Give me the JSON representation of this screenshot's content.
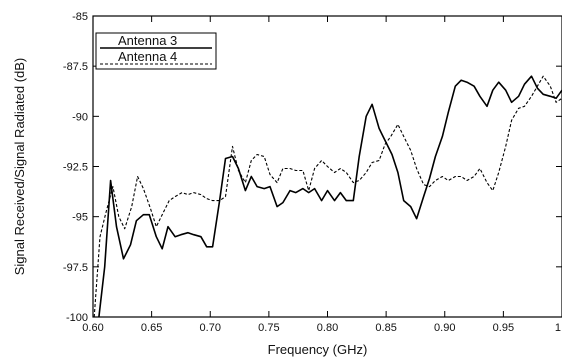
{
  "chart_data": {
    "type": "line",
    "title": "",
    "xlabel": "Frequency (GHz)",
    "ylabel": "Signal Received/Signal Radiated (dB)",
    "xlim": [
      0.6,
      1.0
    ],
    "ylim": [
      -100,
      -85
    ],
    "xticks": [
      0.6,
      0.65,
      0.7,
      0.75,
      0.8,
      0.85,
      0.9,
      0.95,
      1.0
    ],
    "xtick_labels": [
      "0.60",
      "0.65",
      "0.70",
      "0.75",
      "0.80",
      "0.85",
      "0.90",
      "0.95",
      "1"
    ],
    "yticks": [
      -100,
      -97.5,
      -95,
      -92.5,
      -90,
      -87.5,
      -85
    ],
    "ytick_labels": [
      "-100",
      "-97.5",
      "-95",
      "-92.5",
      "-90",
      "-87.5",
      "-85"
    ],
    "grid": false,
    "legend_position": "top-left",
    "series": [
      {
        "name": "Antenna 3",
        "style": "solid",
        "color": "#000000",
        "x": [
          0.605,
          0.61,
          0.615,
          0.62,
          0.626,
          0.632,
          0.637,
          0.643,
          0.648,
          0.654,
          0.659,
          0.664,
          0.67,
          0.675,
          0.681,
          0.686,
          0.692,
          0.697,
          0.702,
          0.708,
          0.713,
          0.719,
          0.724,
          0.73,
          0.735,
          0.74,
          0.746,
          0.751,
          0.757,
          0.762,
          0.768,
          0.773,
          0.779,
          0.784,
          0.789,
          0.795,
          0.8,
          0.806,
          0.811,
          0.816,
          0.822,
          0.827,
          0.833,
          0.838,
          0.844,
          0.849,
          0.855,
          0.86,
          0.865,
          0.871,
          0.876,
          0.882,
          0.887,
          0.892,
          0.898,
          0.903,
          0.909,
          0.914,
          0.919,
          0.925,
          0.93,
          0.936,
          0.941,
          0.946,
          0.952,
          0.957,
          0.963,
          0.968,
          0.974,
          0.979,
          0.984,
          0.99,
          0.995,
          1.0
        ],
        "y": [
          -100,
          -97.5,
          -93.2,
          -95.5,
          -97.1,
          -96.4,
          -95.2,
          -94.9,
          -94.9,
          -96.0,
          -96.6,
          -95.5,
          -96.0,
          -95.9,
          -95.8,
          -95.9,
          -96.0,
          -96.5,
          -96.5,
          -94.2,
          -92.1,
          -92.0,
          -92.6,
          -93.7,
          -93.0,
          -93.5,
          -93.6,
          -93.5,
          -94.5,
          -94.3,
          -93.7,
          -93.8,
          -93.6,
          -93.8,
          -93.6,
          -94.2,
          -93.7,
          -94.2,
          -93.8,
          -94.2,
          -94.2,
          -92.0,
          -90.0,
          -89.4,
          -90.6,
          -91.2,
          -91.9,
          -92.8,
          -94.2,
          -94.5,
          -95.1,
          -94.0,
          -93.1,
          -92.0,
          -91.0,
          -89.8,
          -88.5,
          -88.2,
          -88.3,
          -88.5,
          -89.0,
          -89.5,
          -88.7,
          -88.3,
          -88.7,
          -89.3,
          -89.0,
          -88.4,
          -88.0,
          -88.6,
          -88.9,
          -89.0,
          -89.1,
          -88.7
        ]
      },
      {
        "name": "Antenna 4",
        "style": "dashed",
        "color": "#000000",
        "x": [
          0.601,
          0.606,
          0.611,
          0.617,
          0.622,
          0.627,
          0.633,
          0.638,
          0.643,
          0.649,
          0.654,
          0.659,
          0.665,
          0.67,
          0.676,
          0.681,
          0.686,
          0.692,
          0.697,
          0.702,
          0.708,
          0.713,
          0.719,
          0.724,
          0.73,
          0.735,
          0.74,
          0.746,
          0.751,
          0.757,
          0.762,
          0.768,
          0.773,
          0.779,
          0.784,
          0.789,
          0.795,
          0.8,
          0.806,
          0.811,
          0.816,
          0.822,
          0.827,
          0.833,
          0.838,
          0.844,
          0.849,
          0.854,
          0.86,
          0.865,
          0.871,
          0.876,
          0.882,
          0.887,
          0.892,
          0.898,
          0.903,
          0.909,
          0.914,
          0.919,
          0.925,
          0.93,
          0.936,
          0.941,
          0.946,
          0.952,
          0.957,
          0.963,
          0.968,
          0.974,
          0.979,
          0.984,
          0.99,
          0.995,
          1.0
        ],
        "y": [
          -100,
          -96.0,
          -94.8,
          -93.5,
          -95.0,
          -95.6,
          -94.5,
          -93.0,
          -93.6,
          -94.6,
          -95.5,
          -94.9,
          -94.2,
          -94.0,
          -93.8,
          -93.9,
          -93.8,
          -93.9,
          -94.1,
          -94.2,
          -94.2,
          -94.0,
          -91.5,
          -92.7,
          -93.3,
          -92.2,
          -91.9,
          -92.0,
          -92.9,
          -93.3,
          -92.6,
          -92.6,
          -92.7,
          -92.7,
          -93.7,
          -92.6,
          -92.2,
          -92.5,
          -92.8,
          -92.6,
          -92.8,
          -93.3,
          -93.2,
          -92.8,
          -92.3,
          -92.2,
          -91.4,
          -91.0,
          -90.4,
          -91.0,
          -91.7,
          -92.6,
          -93.4,
          -93.5,
          -93.2,
          -93.0,
          -93.2,
          -93.0,
          -93.0,
          -93.2,
          -93.0,
          -92.6,
          -93.3,
          -93.7,
          -92.8,
          -91.5,
          -90.2,
          -89.6,
          -89.5,
          -89.0,
          -88.5,
          -88.0,
          -88.5,
          -89.3,
          -89.1
        ]
      }
    ]
  }
}
